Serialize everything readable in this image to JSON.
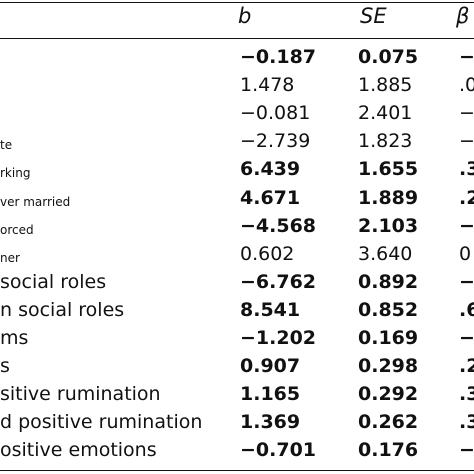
{
  "columns": {
    "b": "b",
    "se": "SE",
    "beta": "β"
  },
  "rows": [
    {
      "label": "",
      "b": "−0.187",
      "se": "0.075",
      "beta": "−",
      "bold": true,
      "small": false
    },
    {
      "label": "",
      "b": "1.478",
      "se": "1.885",
      "beta": ".0",
      "bold": false,
      "small": false
    },
    {
      "label": "",
      "b": "−0.081",
      "se": "2.401",
      "beta": "−",
      "bold": false,
      "small": false
    },
    {
      "label": "te",
      "b": "−2.739",
      "se": "1.823",
      "beta": "−",
      "bold": false,
      "small": true
    },
    {
      "label": "rking",
      "b": "6.439",
      "se": "1.655",
      "beta": ".3",
      "bold": true,
      "small": true
    },
    {
      "label": "ver married",
      "b": "4.671",
      "se": "1.889",
      "beta": ".2",
      "bold": true,
      "small": true
    },
    {
      "label": "orced",
      "b": "−4.568",
      "se": "2.103",
      "beta": "−",
      "bold": true,
      "small": true
    },
    {
      "label": "ner",
      "b": "0.602",
      "se": "3.640",
      "beta": "0",
      "bold": false,
      "small": true
    },
    {
      "label": "social roles",
      "b": "−6.762",
      "se": "0.892",
      "beta": "−",
      "bold": true,
      "small": false
    },
    {
      "label": "n social roles",
      "b": "8.541",
      "se": "0.852",
      "beta": ".6",
      "bold": true,
      "small": false
    },
    {
      "label": "ms",
      "b": "−1.202",
      "se": "0.169",
      "beta": "−",
      "bold": true,
      "small": false
    },
    {
      "label": "s",
      "b": "0.907",
      "se": "0.298",
      "beta": ".2",
      "bold": true,
      "small": false
    },
    {
      "label": "sitive rumination",
      "b": "1.165",
      "se": "0.292",
      "beta": ".3",
      "bold": true,
      "small": false
    },
    {
      "label": "d positive rumination",
      "b": "1.369",
      "se": "0.262",
      "beta": ".3",
      "bold": true,
      "small": false
    },
    {
      "label": "ositive emotions",
      "b": "−0.701",
      "se": "0.176",
      "beta": "−",
      "bold": true,
      "small": false
    }
  ]
}
